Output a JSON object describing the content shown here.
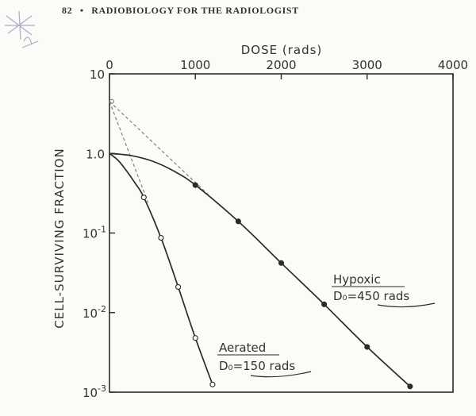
{
  "header": {
    "page_number": "82",
    "separator": "•",
    "running_title": "RADIOBIOLOGY FOR THE RADIOLOGIST"
  },
  "chart_data": {
    "type": "scatter",
    "title": "",
    "xlabel": "DOSE (rads)",
    "ylabel": "CELL-SURVIVING FRACTION",
    "x_axis_position": "top",
    "y_scale": "log",
    "xlim": [
      0,
      4000
    ],
    "ylim": [
      0.001,
      10
    ],
    "x_ticks": [
      "0",
      "1000",
      "2000",
      "3000",
      "4000"
    ],
    "y_ticks": [
      {
        "base": "10",
        "exp": ""
      },
      {
        "base": "1.0",
        "exp": ""
      },
      {
        "base": "10",
        "exp": "-1"
      },
      {
        "base": "10",
        "exp": "-2"
      },
      {
        "base": "10",
        "exp": "-3"
      }
    ],
    "grid": false,
    "series": [
      {
        "name": "Aerated",
        "annotation_line1": "Aerated",
        "annotation_line2": "D₀=150 rads",
        "marker": "open-circle",
        "curve": [
          [
            0,
            1.0
          ],
          [
            100,
            0.82
          ],
          [
            200,
            0.6
          ],
          [
            300,
            0.42
          ],
          [
            400,
            0.28
          ],
          [
            600,
            0.087
          ],
          [
            800,
            0.021
          ],
          [
            1000,
            0.0048
          ],
          [
            1200,
            0.00125
          ]
        ],
        "points": [
          [
            400,
            0.28
          ],
          [
            600,
            0.087
          ],
          [
            800,
            0.021
          ],
          [
            1000,
            0.0048
          ],
          [
            1200,
            0.00125
          ]
        ],
        "extrapolation": [
          [
            0,
            4.5
          ],
          [
            450,
            0.24
          ]
        ]
      },
      {
        "name": "Hypoxic",
        "annotation_line1": "Hypoxic",
        "annotation_line2": "D₀=450 rads",
        "marker": "filled-circle",
        "curve": [
          [
            0,
            1.0
          ],
          [
            250,
            0.94
          ],
          [
            500,
            0.8
          ],
          [
            750,
            0.6
          ],
          [
            1000,
            0.4
          ],
          [
            1500,
            0.14
          ],
          [
            2000,
            0.042
          ],
          [
            2500,
            0.0127
          ],
          [
            3000,
            0.0037
          ],
          [
            3500,
            0.00118
          ]
        ],
        "points": [
          [
            1000,
            0.4
          ],
          [
            1500,
            0.14
          ],
          [
            2000,
            0.042
          ],
          [
            2500,
            0.0127
          ],
          [
            3000,
            0.0037
          ],
          [
            3500,
            0.00118
          ]
        ],
        "extrapolation": [
          [
            0,
            4.5
          ],
          [
            1200,
            0.27
          ]
        ]
      }
    ],
    "colors": {
      "ink": "#2a2a2a",
      "dashed": "#777777",
      "background": "#fbfbf8"
    }
  }
}
